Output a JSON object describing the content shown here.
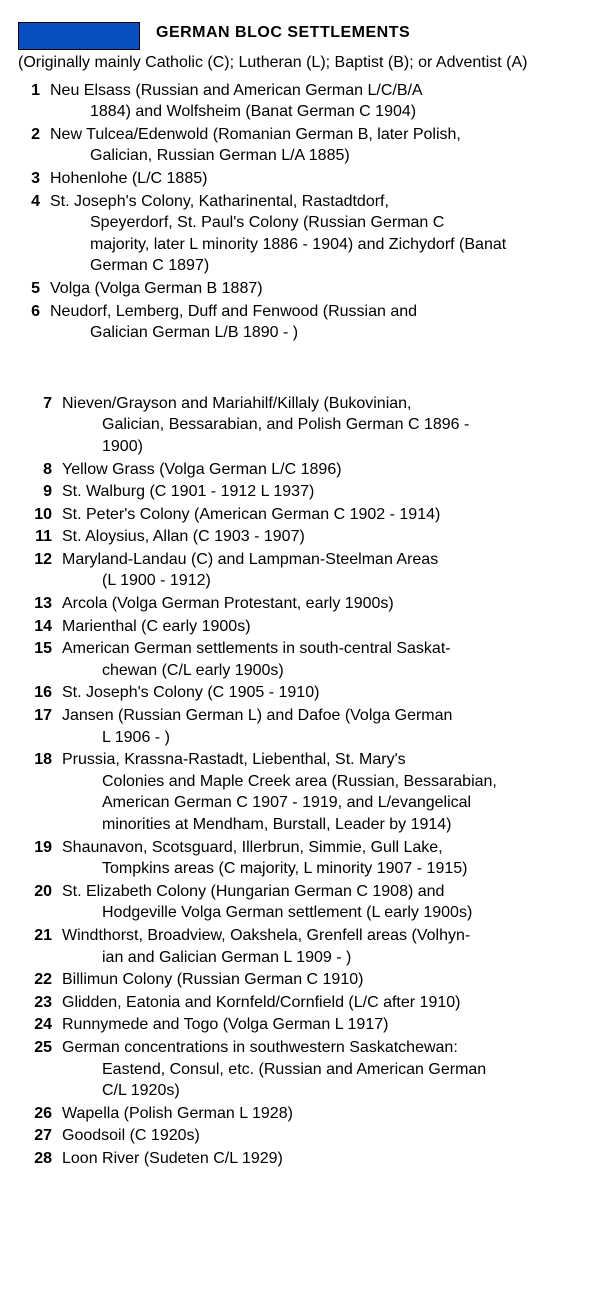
{
  "legend": {
    "swatch_color": "#0a4fbf",
    "swatch_width": 120,
    "swatch_height": 26
  },
  "title": "GERMAN BLOC SETTLEMENTS",
  "subtitle": "(Originally mainly Catholic (C); Lutheran (L); Baptist (B); or Adventist (A)",
  "items_a": [
    {
      "n": "1",
      "lines": [
        "Neu Elsass (Russian and American German L/C/B/A",
        "1884) and Wolfsheim (Banat German C 1904)"
      ]
    },
    {
      "n": "2",
      "lines": [
        "New Tulcea/Edenwold (Romanian German B, later Polish,",
        "Galician, Russian German L/A 1885)"
      ]
    },
    {
      "n": "3",
      "lines": [
        "Hohenlohe (L/C 1885)"
      ]
    },
    {
      "n": "4",
      "lines": [
        "St. Joseph's Colony, Katharinental, Rastadtdorf,",
        "Speyerdorf, St. Paul's Colony (Russian German C",
        "majority, later L minority 1886 - 1904) and Zichydorf (Banat",
        "German C 1897)"
      ]
    },
    {
      "n": "5",
      "lines": [
        "Volga (Volga German B 1887)"
      ]
    },
    {
      "n": "6",
      "lines": [
        "Neudorf, Lemberg, Duff and Fenwood (Russian and",
        "Galician German L/B 1890 - )"
      ]
    }
  ],
  "items_b": [
    {
      "n": "7",
      "lines": [
        "Nieven/Grayson and Mariahilf/Killaly (Bukovinian,",
        "Galician, Bessarabian, and Polish German C 1896 -",
        "1900)"
      ]
    },
    {
      "n": "8",
      "lines": [
        "Yellow Grass (Volga German L/C 1896)"
      ]
    },
    {
      "n": "9",
      "lines": [
        "St. Walburg (C 1901 - 1912 L 1937)"
      ]
    },
    {
      "n": "10",
      "lines": [
        "St. Peter's Colony (American German C 1902 - 1914)"
      ]
    },
    {
      "n": "11",
      "lines": [
        "St. Aloysius, Allan (C 1903 - 1907)"
      ]
    },
    {
      "n": "12",
      "lines": [
        "Maryland-Landau (C) and Lampman-Steelman Areas",
        "(L 1900 - 1912)"
      ]
    },
    {
      "n": "13",
      "lines": [
        "Arcola (Volga German Protestant, early 1900s)"
      ]
    },
    {
      "n": "14",
      "lines": [
        "Marienthal (C early 1900s)"
      ]
    },
    {
      "n": "15",
      "lines": [
        "American German settlements in south-central Saskat-",
        "chewan (C/L early 1900s)"
      ]
    },
    {
      "n": "16",
      "lines": [
        "St. Joseph's Colony (C 1905 - 1910)"
      ]
    },
    {
      "n": "17",
      "lines": [
        "Jansen (Russian German L) and Dafoe (Volga German",
        "L 1906 - )"
      ]
    },
    {
      "n": "18",
      "lines": [
        "Prussia, Krassna-Rastadt, Liebenthal, St. Mary's",
        "Colonies and Maple Creek area (Russian, Bessarabian,",
        "American German C 1907 - 1919, and L/evangelical",
        "minorities at Mendham, Burstall, Leader by 1914)"
      ]
    },
    {
      "n": "19",
      "lines": [
        "Shaunavon, Scotsguard, Illerbrun, Simmie, Gull Lake,",
        "Tompkins areas (C majority, L minority 1907 - 1915)"
      ]
    },
    {
      "n": "20",
      "lines": [
        "St. Elizabeth Colony (Hungarian German C 1908) and",
        "Hodgeville Volga German settlement (L early 1900s)"
      ]
    },
    {
      "n": "21",
      "lines": [
        "Windthorst, Broadview, Oakshela, Grenfell areas (Volhyn-",
        "ian and Galician German L 1909 - )"
      ]
    },
    {
      "n": "22",
      "lines": [
        "Billimun Colony (Russian German C 1910)"
      ]
    },
    {
      "n": "23",
      "lines": [
        "Glidden, Eatonia and Kornfeld/Cornfield (L/C after 1910)"
      ]
    },
    {
      "n": "24",
      "lines": [
        "Runnymede and Togo (Volga German L 1917)"
      ]
    },
    {
      "n": "25",
      "lines": [
        "German concentrations in southwestern Saskatchewan:",
        "Eastend, Consul, etc. (Russian and American German",
        "C/L 1920s)"
      ]
    },
    {
      "n": "26",
      "lines": [
        "Wapella (Polish German L 1928)"
      ]
    },
    {
      "n": "27",
      "lines": [
        "Goodsoil (C 1920s)"
      ]
    },
    {
      "n": "28",
      "lines": [
        "Loon River (Sudeten C/L 1929)"
      ]
    }
  ]
}
